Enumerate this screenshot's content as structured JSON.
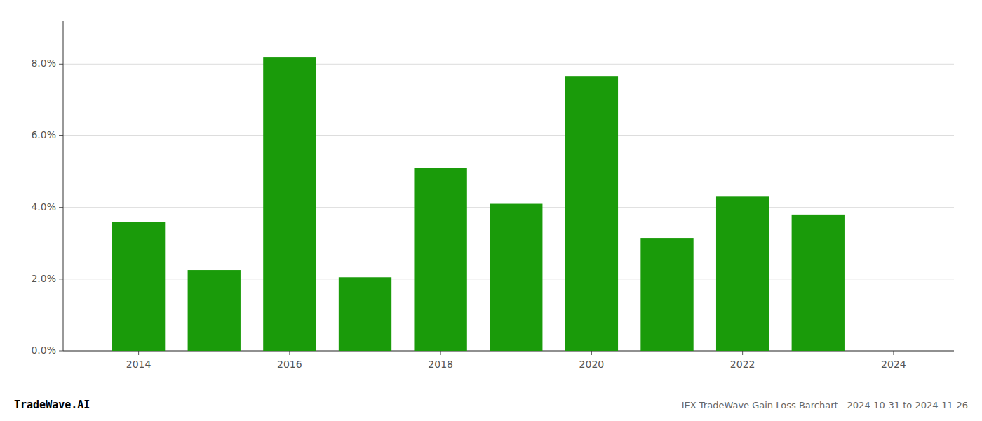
{
  "chart_data": {
    "type": "bar",
    "x": [
      2014,
      2015,
      2016,
      2017,
      2018,
      2019,
      2020,
      2021,
      2022,
      2023
    ],
    "values": [
      0.036,
      0.0225,
      0.082,
      0.0205,
      0.051,
      0.041,
      0.0765,
      0.0315,
      0.043,
      0.038
    ],
    "color": "#1a9b0a",
    "xlim": [
      2013.0,
      2024.8
    ],
    "xticks": [
      2014,
      2016,
      2018,
      2020,
      2022,
      2024
    ],
    "ylim": [
      0,
      0.092
    ],
    "yticks": [
      {
        "value": 0.0,
        "label": "0.0%"
      },
      {
        "value": 0.02,
        "label": "2.0%"
      },
      {
        "value": 0.04,
        "label": "4.0%"
      },
      {
        "value": 0.06,
        "label": "6.0%"
      },
      {
        "value": 0.08,
        "label": "8.0%"
      }
    ],
    "grid": true,
    "annotations": [
      "TradeWave.AI",
      "IEX TradeWave Gain Loss Barchart - 2024-10-31 to 2024-11-26"
    ]
  }
}
